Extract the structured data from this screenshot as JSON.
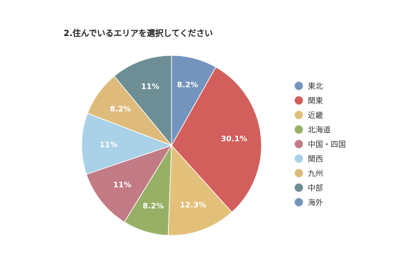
{
  "chart_data": {
    "type": "pie",
    "title": "2.住んでいるエリアを選択してください",
    "categories": [
      "東北",
      "関東",
      "近畿",
      "北海道",
      "中国・四国",
      "関西",
      "九州",
      "中部",
      "海外"
    ],
    "values": [
      8.2,
      30.1,
      12.3,
      8.2,
      11,
      11,
      8.2,
      11,
      0
    ],
    "value_labels": [
      "8.2%",
      "30.1%",
      "12.3%",
      "8.2%",
      "11%",
      "11%",
      "8.2%",
      "11%",
      ""
    ],
    "colors": [
      "#7394bd",
      "#d35f5c",
      "#e3c07a",
      "#97b065",
      "#c27a84",
      "#a9d1e7",
      "#dfbb7b",
      "#6d8e95",
      "#7394bd"
    ],
    "legend_position": "right"
  }
}
